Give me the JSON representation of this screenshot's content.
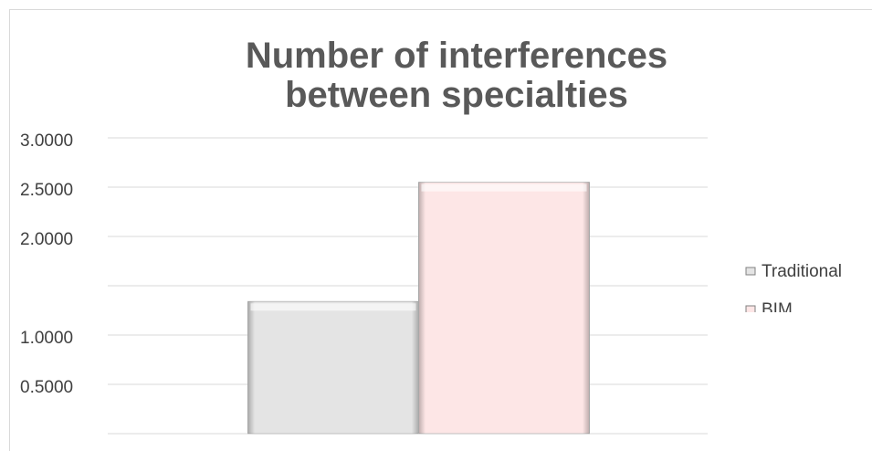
{
  "chart_data": {
    "type": "bar",
    "title": "Number of interferences between specialties",
    "categories": [
      null
    ],
    "series": [
      {
        "name": "Traditional",
        "color": "#e4e4e4",
        "values": [
          1.34
        ]
      },
      {
        "name": "BIM",
        "color": "#fde6e6",
        "values": [
          2.55
        ]
      }
    ],
    "ylim": [
      0,
      3
    ],
    "yticks": [
      {
        "value": 0.5,
        "label": "0.5000"
      },
      {
        "value": 1,
        "label": "1.0000"
      },
      {
        "value": 1.5,
        "label": null
      },
      {
        "value": 2,
        "label": "2.0000"
      },
      {
        "value": 2.5,
        "label": "2.5000"
      },
      {
        "value": 3,
        "label": "3.0000"
      }
    ],
    "grid": true,
    "legend": "right"
  }
}
